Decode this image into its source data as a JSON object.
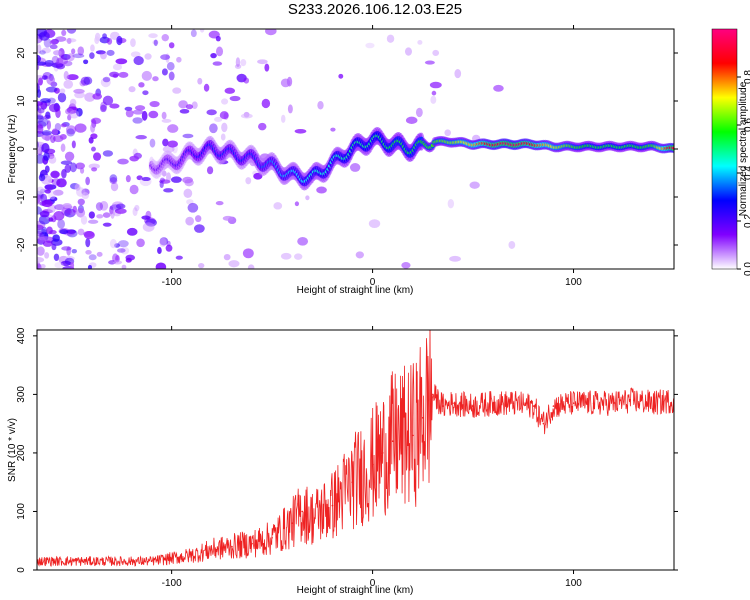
{
  "title": "S233.2026.106.12.03.E25",
  "chart_data": [
    {
      "type": "heatmap",
      "title": "S233.2026.106.12.03.E25",
      "xlabel": "Height of straight line (km)",
      "ylabel": "Frequency (Hz)",
      "xlim": [
        -167,
        150
      ],
      "ylim": [
        -25,
        25
      ],
      "xticks": [
        -100,
        0,
        100
      ],
      "xtick_labels": [
        "-100",
        "0",
        "100"
      ],
      "yticks": [
        -20,
        -10,
        0,
        10,
        20
      ],
      "ytick_labels": [
        "-20",
        "-10",
        "0",
        "10",
        "20"
      ],
      "ridge": {
        "x": [
          -110,
          -100,
          -90,
          -80,
          -70,
          -60,
          -50,
          -40,
          -30,
          -20,
          -10,
          0,
          10,
          20,
          30,
          40,
          50,
          60,
          70,
          80,
          90,
          100,
          110,
          120,
          130,
          140,
          150
        ],
        "y": [
          -3.5,
          -3.0,
          -1.0,
          0.0,
          -1.0,
          -2.0,
          -3.5,
          -5.5,
          -6.0,
          -3.0,
          0.0,
          2.0,
          1.0,
          0.0,
          1.5,
          1.5,
          1.0,
          1.0,
          1.0,
          1.0,
          0.5,
          0.5,
          0.5,
          0.5,
          0.5,
          0.5,
          0.0
        ],
        "amplitude": [
          0.15,
          0.2,
          0.25,
          0.3,
          0.3,
          0.3,
          0.35,
          0.4,
          0.45,
          0.45,
          0.5,
          0.5,
          0.55,
          0.55,
          0.6,
          0.65,
          0.75,
          0.9,
          0.95,
          0.85,
          0.7,
          0.6,
          0.55,
          0.55,
          0.55,
          0.6,
          0.95
        ]
      },
      "colorbar": {
        "label": "Normalized spectral amplitude",
        "range": [
          0,
          1
        ],
        "ticks": [
          0.0,
          0.2,
          0.4,
          0.6,
          0.8
        ],
        "tick_labels": [
          "0.0",
          "0.2",
          "0.4",
          "0.6",
          "0.8"
        ],
        "colormap": [
          "#ffffff",
          "#8000ff",
          "#0000ff",
          "#00ffff",
          "#00ff00",
          "#ffff00",
          "#ff0000",
          "#ff0080"
        ]
      }
    },
    {
      "type": "line",
      "xlabel": "Height of straight line (km)",
      "ylabel": "SNR (10 * v/v)",
      "xlim": [
        -167,
        150
      ],
      "ylim": [
        0,
        410
      ],
      "xticks": [
        -100,
        0,
        100
      ],
      "xtick_labels": [
        "-100",
        "0",
        "100"
      ],
      "yticks": [
        0,
        100,
        200,
        300,
        400
      ],
      "ytick_labels": [
        "0",
        "100",
        "200",
        "300",
        "400"
      ],
      "series": [
        {
          "name": "SNR",
          "color": "#ee2222",
          "x": [
            -167,
            -150,
            -130,
            -110,
            -100,
            -90,
            -80,
            -70,
            -60,
            -50,
            -40,
            -35,
            -30,
            -20,
            -10,
            0,
            5,
            10,
            20,
            25,
            30,
            35,
            40,
            50,
            60,
            70,
            80,
            85,
            90,
            100,
            110,
            120,
            130,
            140,
            150
          ],
          "y": [
            15,
            15,
            15,
            15,
            20,
            25,
            35,
            40,
            45,
            55,
            80,
            100,
            90,
            110,
            150,
            180,
            200,
            220,
            230,
            260,
            300,
            280,
            285,
            280,
            285,
            285,
            280,
            250,
            280,
            285,
            285,
            285,
            290,
            285,
            290
          ]
        }
      ]
    }
  ]
}
